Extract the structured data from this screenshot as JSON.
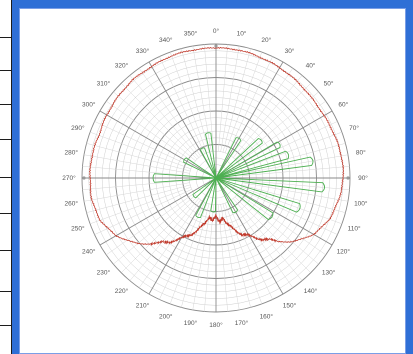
{
  "chart_data": {
    "type": "polar",
    "title": "",
    "angle_ticks": [
      "0°",
      "10°",
      "20°",
      "30°",
      "40°",
      "50°",
      "60°",
      "70°",
      "80°",
      "90°",
      "100°",
      "110°",
      "120°",
      "130°",
      "140°",
      "150°",
      "160°",
      "170°",
      "180°",
      "190°",
      "200°",
      "210°",
      "220°",
      "230°",
      "240°",
      "250°",
      "260°",
      "270°",
      "280°",
      "290°",
      "300°",
      "310°",
      "320°",
      "330°",
      "340°",
      "350°"
    ],
    "angle_direction": "clockwise",
    "zero_position": "top",
    "radial_rings": 4,
    "grid": true,
    "series": [
      {
        "color": "#c0392b",
        "style": "outer envelope, noisy near 180°",
        "points": [
          [
            0,
            0.97
          ],
          [
            10,
            0.97
          ],
          [
            20,
            0.96
          ],
          [
            30,
            0.95
          ],
          [
            40,
            0.94
          ],
          [
            50,
            0.93
          ],
          [
            60,
            0.93
          ],
          [
            70,
            0.94
          ],
          [
            80,
            0.95
          ],
          [
            90,
            0.95
          ],
          [
            100,
            0.93
          ],
          [
            110,
            0.9
          ],
          [
            120,
            0.84
          ],
          [
            130,
            0.74
          ],
          [
            140,
            0.6
          ],
          [
            150,
            0.5
          ],
          [
            160,
            0.42
          ],
          [
            165,
            0.36
          ],
          [
            170,
            0.3
          ],
          [
            175,
            0.34
          ],
          [
            180,
            0.27
          ],
          [
            185,
            0.33
          ],
          [
            190,
            0.29
          ],
          [
            195,
            0.36
          ],
          [
            200,
            0.42
          ],
          [
            210,
            0.52
          ],
          [
            220,
            0.63
          ],
          [
            230,
            0.76
          ],
          [
            240,
            0.86
          ],
          [
            250,
            0.92
          ],
          [
            260,
            0.94
          ],
          [
            270,
            0.94
          ],
          [
            280,
            0.94
          ],
          [
            290,
            0.93
          ],
          [
            300,
            0.94
          ],
          [
            310,
            0.95
          ],
          [
            320,
            0.96
          ],
          [
            330,
            0.96
          ],
          [
            340,
            0.97
          ],
          [
            350,
            0.97
          ]
        ]
      },
      {
        "color": "#4caf50",
        "style": "lobed spikes",
        "lobes": [
          {
            "angle": 30,
            "value": 0.35,
            "width": 7
          },
          {
            "angle": 50,
            "value": 0.45,
            "width": 6
          },
          {
            "angle": 62,
            "value": 0.55,
            "width": 5
          },
          {
            "angle": 72,
            "value": 0.58,
            "width": 6
          },
          {
            "angle": 80,
            "value": 0.75,
            "width": 5
          },
          {
            "angle": 95,
            "value": 0.83,
            "width": 5
          },
          {
            "angle": 110,
            "value": 0.68,
            "width": 6
          },
          {
            "angle": 125,
            "value": 0.52,
            "width": 7
          },
          {
            "angle": 150,
            "value": 0.3,
            "width": 8
          },
          {
            "angle": 185,
            "value": 0.26,
            "width": 8
          },
          {
            "angle": 205,
            "value": 0.33,
            "width": 7
          },
          {
            "angle": 230,
            "value": 0.22,
            "width": 9
          },
          {
            "angle": 270,
            "value": 0.48,
            "width": 8
          },
          {
            "angle": 300,
            "value": 0.28,
            "width": 8
          },
          {
            "angle": 335,
            "value": 0.25,
            "width": 8
          },
          {
            "angle": 350,
            "value": 0.35,
            "width": 7
          }
        ]
      }
    ]
  }
}
